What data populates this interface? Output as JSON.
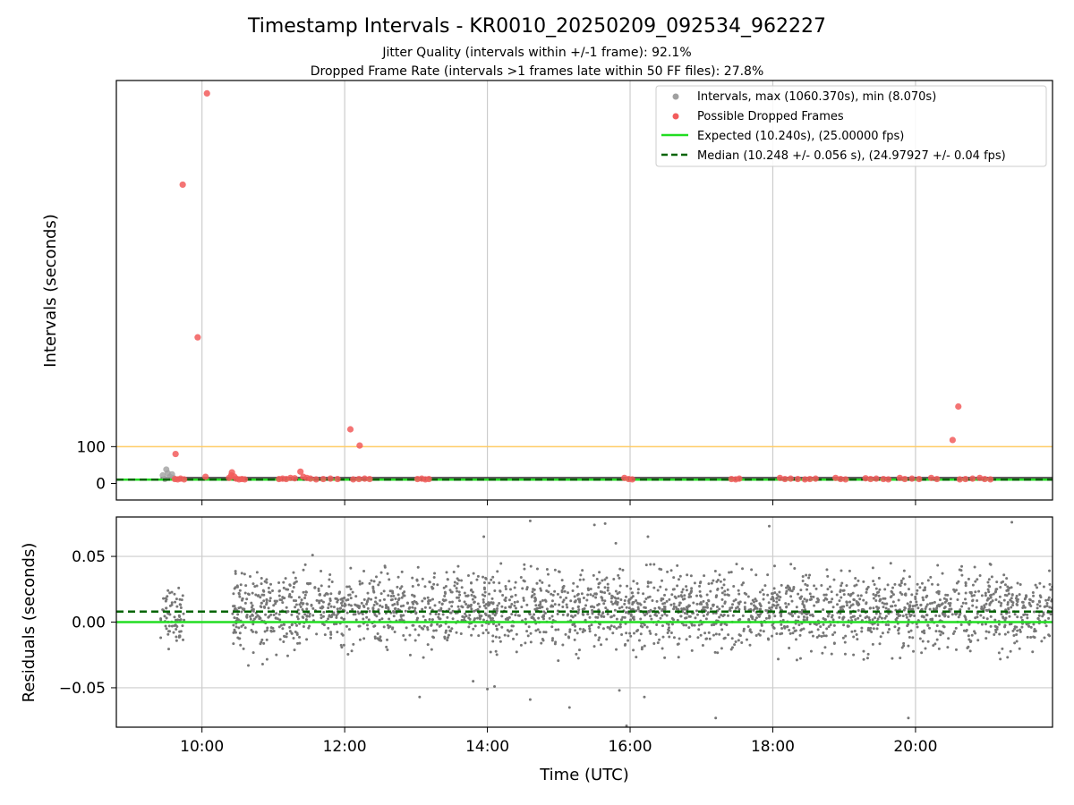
{
  "chart_data": [
    {
      "type": "scatter",
      "title": "Timestamp Intervals - KR0010_20250209_092534_962227",
      "subtitle_lines": [
        "Jitter Quality (intervals within +/-1 frame): 92.1%",
        "Dropped Frame Rate (intervals >1 frames late within 50 FF files): 27.8%"
      ],
      "xlabel": "",
      "ylabel": "Intervals (seconds)",
      "x_unit": "hours UTC",
      "xlim": [
        8.8,
        21.92
      ],
      "ylim": [
        -45,
        1095
      ],
      "y_ticks": [
        0,
        100
      ],
      "y_tick_labels": [
        "0",
        "100"
      ],
      "grid": "vertical",
      "reference_line": {
        "y": 100,
        "color": "#ffcc66"
      },
      "legend": {
        "placement": "top-right",
        "entries": [
          {
            "label": "Intervals, max (1060.370s), min (8.070s)",
            "marker": "dot",
            "color": "#a0a0a0"
          },
          {
            "label": "Possible Dropped Frames",
            "marker": "dot",
            "color": "#f25c5c"
          },
          {
            "label": "Expected (10.240s), (25.00000 fps)",
            "marker": "line",
            "color": "#22dd22"
          },
          {
            "label": "Median (10.248 +/- 0.056 s), (24.97927 +/- 0.04 fps)",
            "marker": "dashed",
            "color": "#006400"
          }
        ]
      },
      "series": [
        {
          "name": "Expected",
          "type": "hline",
          "y": 10.24,
          "color": "#22dd22"
        },
        {
          "name": "Median",
          "type": "hline",
          "y": 10.248,
          "color": "#006400",
          "style": "dashed"
        },
        {
          "name": "Intervals",
          "color": "#a0a0a0",
          "points": [
            [
              9.45,
              22
            ],
            [
              9.5,
              38
            ],
            [
              9.52,
              28
            ],
            [
              9.55,
              18
            ],
            [
              9.58,
              25
            ],
            [
              9.6,
              15
            ],
            [
              9.48,
              12
            ]
          ],
          "band": {
            "x_start": 9.42,
            "x_end": 21.92,
            "y_low": 8.07,
            "y_high": 18,
            "color": "#444444"
          }
        },
        {
          "name": "Possible Dropped Frames",
          "color": "#f25c5c",
          "points": [
            [
              10.07,
              1060
            ],
            [
              9.73,
              812
            ],
            [
              9.94,
              397
            ],
            [
              12.08,
              147
            ],
            [
              12.21,
              103
            ],
            [
              20.6,
              209
            ],
            [
              20.52,
              118
            ],
            [
              9.63,
              80
            ],
            [
              10.05,
              18
            ],
            [
              11.38,
              32
            ],
            [
              10.42,
              30
            ],
            [
              9.62,
              12
            ],
            [
              9.66,
              11
            ],
            [
              9.7,
              13
            ],
            [
              9.75,
              11
            ],
            [
              10.38,
              15
            ],
            [
              10.41,
              22
            ],
            [
              10.45,
              19
            ],
            [
              10.48,
              13
            ],
            [
              10.52,
              11
            ],
            [
              10.56,
              12
            ],
            [
              10.6,
              11
            ],
            [
              11.08,
              12
            ],
            [
              11.13,
              13
            ],
            [
              11.18,
              12
            ],
            [
              11.24,
              15
            ],
            [
              11.3,
              14
            ],
            [
              11.42,
              18
            ],
            [
              11.47,
              15
            ],
            [
              11.52,
              13
            ],
            [
              11.6,
              11
            ],
            [
              11.7,
              12
            ],
            [
              11.8,
              13
            ],
            [
              11.9,
              12
            ],
            [
              12.12,
              11
            ],
            [
              12.2,
              12
            ],
            [
              12.28,
              13
            ],
            [
              12.35,
              12
            ],
            [
              13.02,
              12
            ],
            [
              13.08,
              13
            ],
            [
              13.13,
              11
            ],
            [
              13.18,
              12
            ],
            [
              15.92,
              15
            ],
            [
              15.98,
              12
            ],
            [
              16.03,
              11
            ],
            [
              17.42,
              12
            ],
            [
              17.48,
              11
            ],
            [
              17.53,
              13
            ],
            [
              18.1,
              15
            ],
            [
              18.17,
              12
            ],
            [
              18.25,
              13
            ],
            [
              18.35,
              12
            ],
            [
              18.45,
              11
            ],
            [
              18.52,
              12
            ],
            [
              18.6,
              13
            ],
            [
              18.88,
              15
            ],
            [
              18.95,
              12
            ],
            [
              19.02,
              11
            ],
            [
              19.3,
              14
            ],
            [
              19.37,
              12
            ],
            [
              19.45,
              13
            ],
            [
              19.55,
              12
            ],
            [
              19.62,
              11
            ],
            [
              19.78,
              15
            ],
            [
              19.85,
              12
            ],
            [
              19.95,
              13
            ],
            [
              20.05,
              12
            ],
            [
              20.22,
              15
            ],
            [
              20.3,
              12
            ],
            [
              20.62,
              11
            ],
            [
              20.7,
              12
            ],
            [
              20.8,
              13
            ],
            [
              20.9,
              15
            ],
            [
              20.97,
              12
            ],
            [
              21.05,
              11
            ]
          ]
        }
      ]
    },
    {
      "type": "scatter",
      "title": "",
      "xlabel": "Time (UTC)",
      "ylabel": "Residuals (seconds)",
      "x_unit": "hours UTC",
      "xlim": [
        8.8,
        21.92
      ],
      "ylim": [
        -0.08,
        0.08
      ],
      "x_ticks": [
        10,
        12,
        14,
        16,
        18,
        20
      ],
      "x_tick_labels": [
        "10:00",
        "12:00",
        "14:00",
        "16:00",
        "18:00",
        "20:00"
      ],
      "y_ticks": [
        -0.05,
        0.0,
        0.05
      ],
      "y_tick_labels": [
        "−0.05",
        "0.00",
        "0.05"
      ],
      "grid": "both",
      "series": [
        {
          "name": "Expected",
          "type": "hline",
          "y": 0.0,
          "color": "#22dd22"
        },
        {
          "name": "Median",
          "type": "hline",
          "y": 0.008,
          "color": "#006400",
          "style": "dashed"
        },
        {
          "name": "Residuals",
          "color": "#777777",
          "generated": {
            "segments": [
              {
                "x_start": 9.42,
                "x_end": 9.75,
                "count": 70,
                "y_center": 0.006,
                "y_spread": 0.011
              },
              {
                "x_start": 10.42,
                "x_end": 21.92,
                "count": 2600,
                "y_center": 0.009,
                "y_spread": 0.014
              }
            ],
            "seed": 12345
          },
          "outliers": [
            [
              14.6,
              0.077
            ],
            [
              15.5,
              0.074
            ],
            [
              15.65,
              0.075
            ],
            [
              21.35,
              0.076
            ],
            [
              17.95,
              0.073
            ],
            [
              13.95,
              0.065
            ],
            [
              16.25,
              0.065
            ],
            [
              15.8,
              0.06
            ],
            [
              11.55,
              0.051
            ],
            [
              15.95,
              -0.079
            ],
            [
              17.2,
              -0.073
            ],
            [
              19.9,
              -0.073
            ],
            [
              13.05,
              -0.057
            ],
            [
              14.6,
              -0.059
            ],
            [
              15.15,
              -0.065
            ],
            [
              14.1,
              -0.049
            ],
            [
              14.0,
              -0.051
            ],
            [
              15.85,
              -0.052
            ],
            [
              16.2,
              -0.057
            ],
            [
              13.8,
              -0.045
            ],
            [
              10.85,
              -0.032
            ],
            [
              10.65,
              -0.033
            ]
          ]
        }
      ]
    }
  ]
}
